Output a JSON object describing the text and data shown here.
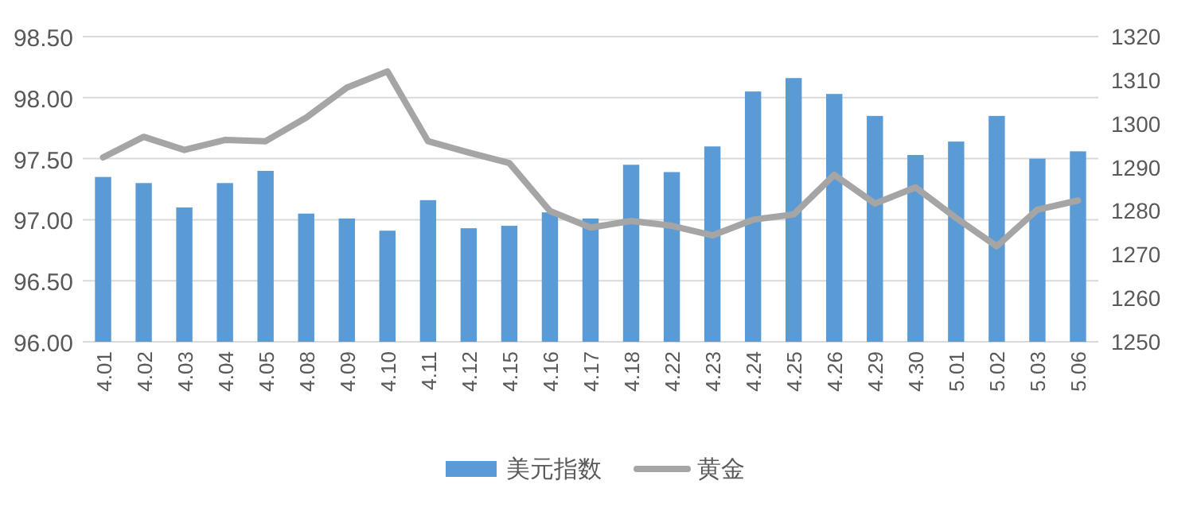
{
  "chart_data": {
    "type": "bar",
    "categories": [
      "4.01",
      "4.02",
      "4.03",
      "4.04",
      "4.05",
      "4.08",
      "4.09",
      "4.10",
      "4.11",
      "4.12",
      "4.15",
      "4.16",
      "4.17",
      "4.18",
      "4.22",
      "4.23",
      "4.24",
      "4.25",
      "4.26",
      "4.29",
      "4.30",
      "5.01",
      "5.02",
      "5.03",
      "5.06"
    ],
    "series": [
      {
        "name": "美元指数",
        "color": "#5b9bd5",
        "values": [
          97.35,
          97.3,
          97.1,
          97.3,
          97.4,
          97.05,
          97.01,
          96.91,
          97.16,
          96.93,
          96.95,
          97.06,
          97.01,
          97.45,
          97.39,
          97.6,
          98.05,
          98.16,
          98.03,
          97.85,
          97.53,
          97.64,
          97.85,
          97.5,
          97.56
        ]
      },
      {
        "name": "黄金",
        "type": "line",
        "axis": "y2",
        "color": "#a5a5a5",
        "values": [
          1292.3,
          1297,
          1294,
          1296.3,
          1296,
          1301.4,
          1308.3,
          1312,
          1296,
          1293.4,
          1291,
          1280,
          1276.2,
          1277.7,
          1276.6,
          1274.4,
          1278,
          1279.2,
          1288.3,
          1281.7,
          1285.4,
          1278.4,
          1271.9,
          1280.3,
          1282.4
        ]
      }
    ],
    "ylim": [
      96,
      98.5
    ],
    "yticks": [
      {
        "value": 96,
        "label": "96.00"
      },
      {
        "value": 96.5,
        "label": "96.50"
      },
      {
        "value": 97,
        "label": "97.00"
      },
      {
        "value": 97.5,
        "label": "97.50"
      },
      {
        "value": 98,
        "label": "98.00"
      },
      {
        "value": 98.5,
        "label": "98.50"
      }
    ],
    "y2lim": [
      1250,
      1320
    ],
    "y2ticks": [
      1250,
      1260,
      1270,
      1280,
      1290,
      1300,
      1310,
      1320
    ],
    "grid": "y",
    "legend": "bottom"
  }
}
